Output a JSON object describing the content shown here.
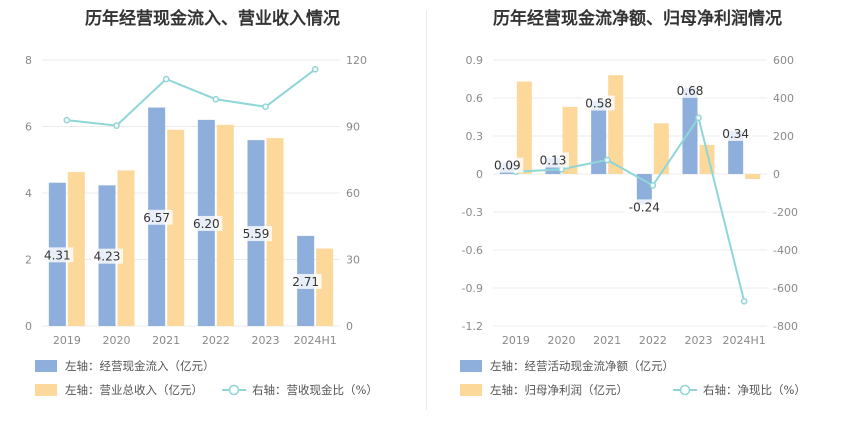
{
  "chart_data": [
    {
      "type": "bar",
      "title": "历年经营现金流入、营业收入情况",
      "categories": [
        "2019",
        "2020",
        "2021",
        "2022",
        "2023",
        "2024H1"
      ],
      "left_axis": {
        "ylim": [
          0,
          8
        ],
        "ticks": [
          "0",
          "2",
          "4",
          "6",
          "8"
        ]
      },
      "right_axis": {
        "ylim": [
          0,
          120
        ],
        "ticks": [
          "0",
          "30",
          "60",
          "90",
          "120"
        ]
      },
      "series": [
        {
          "name": "左轴：经营现金流入（亿元）",
          "type": "bar",
          "axis": "left",
          "color": "#8eaedc",
          "values": [
            4.31,
            4.23,
            6.57,
            6.2,
            5.59,
            2.71
          ],
          "labels": [
            "4.31",
            "4.23",
            "6.57",
            "6.20",
            "5.59",
            "2.71"
          ]
        },
        {
          "name": "左轴：营业总收入（亿元）",
          "type": "bar",
          "axis": "left",
          "color": "#fdd89b",
          "values": [
            4.63,
            4.68,
            5.9,
            6.05,
            5.65,
            2.33
          ]
        },
        {
          "name": "右轴：营收现金比（%）",
          "type": "line",
          "axis": "right",
          "color": "#8fd6d8",
          "values": [
            92.9,
            90.4,
            111.4,
            102.3,
            98.9,
            115.8
          ]
        }
      ]
    },
    {
      "type": "bar",
      "title": "历年经营现金流净额、归母净利润情况",
      "categories": [
        "2019",
        "2020",
        "2021",
        "2022",
        "2023",
        "2024H1"
      ],
      "left_axis": {
        "ylim": [
          -1.2,
          0.9
        ],
        "ticks": [
          "-1.2",
          "-0.9",
          "-0.6",
          "-0.3",
          "0",
          "0.3",
          "0.6",
          "0.9"
        ]
      },
      "right_axis": {
        "ylim": [
          -800,
          600
        ],
        "ticks": [
          "-800",
          "-600",
          "-400",
          "-200",
          "0",
          "200",
          "400",
          "600"
        ]
      },
      "series": [
        {
          "name": "左轴：经营活动现金流净额（亿元）",
          "type": "bar",
          "axis": "left",
          "color": "#8eaedc",
          "values": [
            0.09,
            0.13,
            0.58,
            -0.24,
            0.68,
            0.34
          ],
          "labels": [
            "0.09",
            "0.13",
            "0.58",
            "-0.24",
            "0.68",
            "0.34"
          ]
        },
        {
          "name": "左轴：归母净利润（亿元）",
          "type": "bar",
          "axis": "left",
          "color": "#fdd89b",
          "values": [
            0.73,
            0.53,
            0.78,
            0.4,
            0.23,
            -0.04
          ]
        },
        {
          "name": "右轴：净现比（%）",
          "type": "line",
          "axis": "right",
          "color": "#8fd6d8",
          "values": [
            12,
            25,
            74,
            -60,
            296,
            -670
          ]
        }
      ]
    }
  ]
}
